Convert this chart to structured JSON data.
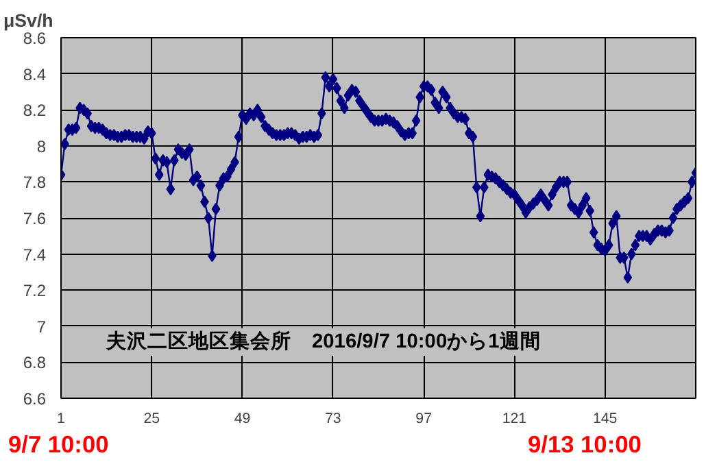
{
  "chart_data": {
    "type": "line",
    "title": "夫沢二区地区集会所　2016/9/7 10:00から1週間",
    "ylabel": "μSv/h",
    "annotations": [
      "9/7 10:00",
      "9/13 10:00"
    ],
    "x": [
      1,
      2,
      3,
      4,
      5,
      6,
      7,
      8,
      9,
      10,
      11,
      12,
      13,
      14,
      15,
      16,
      17,
      18,
      19,
      20,
      21,
      22,
      23,
      24,
      25,
      26,
      27,
      28,
      29,
      30,
      31,
      32,
      33,
      34,
      35,
      36,
      37,
      38,
      39,
      40,
      41,
      42,
      43,
      44,
      45,
      46,
      47,
      48,
      49,
      50,
      51,
      52,
      53,
      54,
      55,
      56,
      57,
      58,
      59,
      60,
      61,
      62,
      63,
      64,
      65,
      66,
      67,
      68,
      69,
      70,
      71,
      72,
      73,
      74,
      75,
      76,
      77,
      78,
      79,
      80,
      81,
      82,
      83,
      84,
      85,
      86,
      87,
      88,
      89,
      90,
      91,
      92,
      93,
      94,
      95,
      96,
      97,
      98,
      99,
      100,
      101,
      102,
      103,
      104,
      105,
      106,
      107,
      108,
      109,
      110,
      111,
      112,
      113,
      114,
      115,
      116,
      117,
      118,
      119,
      120,
      121,
      122,
      123,
      124,
      125,
      126,
      127,
      128,
      129,
      130,
      131,
      132,
      133,
      134,
      135,
      136,
      137,
      138,
      139,
      140,
      141,
      142,
      143,
      144,
      145,
      146,
      147,
      148,
      149,
      150,
      151,
      152,
      153,
      154,
      155,
      156,
      157,
      158,
      159,
      160,
      161,
      162,
      163,
      164,
      165,
      166,
      167,
      168,
      169
    ],
    "series": [
      {
        "color": "#000080",
        "values": [
          7.84,
          8.01,
          8.09,
          8.09,
          8.1,
          8.21,
          8.2,
          8.18,
          8.11,
          8.1,
          8.1,
          8.09,
          8.07,
          8.06,
          8.06,
          8.05,
          8.05,
          8.06,
          8.06,
          8.05,
          8.05,
          8.05,
          8.04,
          8.08,
          8.07,
          7.93,
          7.84,
          7.92,
          7.91,
          7.76,
          7.92,
          7.98,
          7.96,
          7.95,
          7.98,
          7.81,
          7.83,
          7.78,
          7.69,
          7.6,
          7.39,
          7.65,
          7.78,
          7.82,
          7.83,
          7.87,
          7.91,
          8.05,
          8.17,
          8.15,
          8.18,
          8.17,
          8.2,
          8.16,
          8.11,
          8.09,
          8.07,
          8.06,
          8.06,
          8.06,
          8.07,
          8.07,
          8.06,
          8.04,
          8.05,
          8.05,
          8.06,
          8.05,
          8.06,
          8.18,
          8.38,
          8.33,
          8.37,
          8.32,
          8.25,
          8.21,
          8.28,
          8.31,
          8.3,
          8.25,
          8.22,
          8.19,
          8.16,
          8.14,
          8.14,
          8.14,
          8.15,
          8.14,
          8.13,
          8.11,
          8.08,
          8.06,
          8.07,
          8.07,
          8.14,
          8.27,
          8.33,
          8.33,
          8.31,
          8.24,
          8.21,
          8.3,
          8.27,
          8.21,
          8.18,
          8.16,
          8.16,
          8.15,
          8.07,
          8.05,
          7.77,
          7.61,
          7.77,
          7.84,
          7.83,
          7.82,
          7.8,
          7.78,
          7.76,
          7.74,
          7.73,
          7.7,
          7.67,
          7.63,
          7.66,
          7.68,
          7.7,
          7.73,
          7.7,
          7.67,
          7.73,
          7.77,
          7.8,
          7.8,
          7.8,
          7.67,
          7.65,
          7.63,
          7.67,
          7.71,
          7.64,
          7.52,
          7.45,
          7.43,
          7.42,
          7.45,
          7.57,
          7.61,
          7.38,
          7.38,
          7.27,
          7.4,
          7.45,
          7.5,
          7.5,
          7.5,
          7.48,
          7.51,
          7.53,
          7.53,
          7.52,
          7.53,
          7.6,
          7.65,
          7.67,
          7.69,
          7.71,
          7.8,
          7.85
        ]
      }
    ],
    "xlim": [
      1,
      169
    ],
    "xticks": [
      1,
      25,
      49,
      73,
      97,
      121,
      145
    ],
    "ylim": [
      6.6,
      8.6
    ],
    "yticks": [
      6.6,
      6.8,
      7,
      7.2,
      7.4,
      7.6,
      7.8,
      8,
      8.2,
      8.4,
      8.6
    ],
    "grid": true,
    "marker": "diamond",
    "line_style": "solid"
  }
}
